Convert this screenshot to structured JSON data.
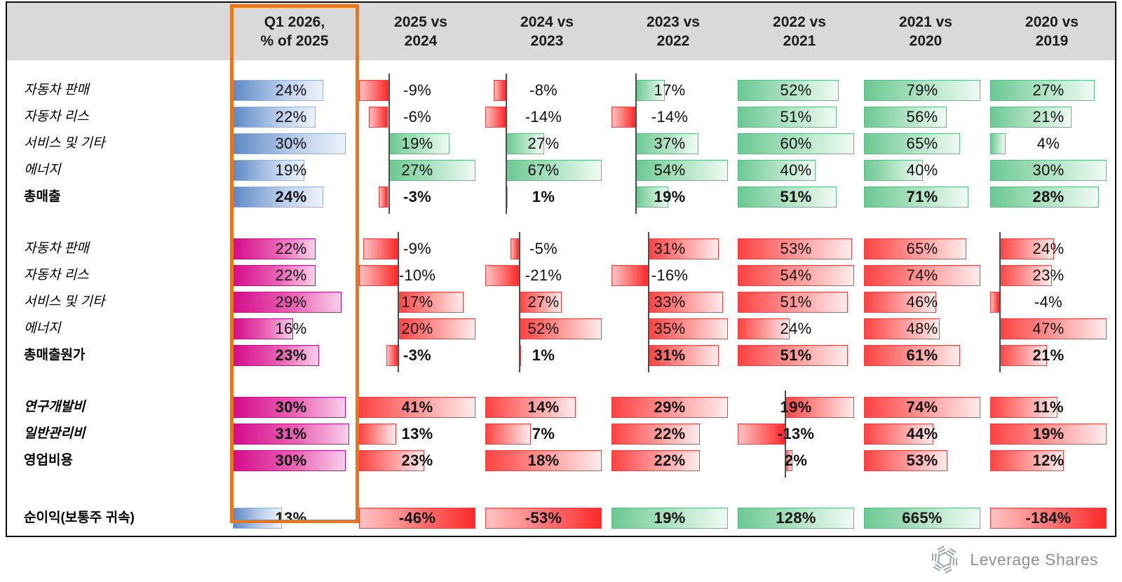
{
  "chart_data": {
    "type": "bar",
    "unit": "%",
    "column_headers": [
      {
        "line1": "Q1 2026,",
        "line2": "% of 2025",
        "highlighted": true
      },
      {
        "line1": "2025 vs",
        "line2": "2024"
      },
      {
        "line1": "2024 vs",
        "line2": "2023"
      },
      {
        "line1": "2023 vs",
        "line2": "2022"
      },
      {
        "line1": "2022 vs",
        "line2": "2021"
      },
      {
        "line1": "2021 vs",
        "line2": "2020"
      },
      {
        "line1": "2020 vs",
        "line2": "2019"
      }
    ],
    "first_column_max": 31,
    "groups": [
      {
        "name": "revenue",
        "first_col_style": "blue",
        "positive_style": "green",
        "full_width_bars": false,
        "rows": [
          {
            "label": "자동차 판매",
            "italic": true,
            "bold": false,
            "values": [
              24,
              -9,
              -8,
              17,
              52,
              79,
              27
            ]
          },
          {
            "label": "자동차 리스",
            "italic": true,
            "bold": false,
            "values": [
              22,
              -6,
              -14,
              -14,
              51,
              56,
              21
            ]
          },
          {
            "label": "서비스 및 기타",
            "italic": true,
            "bold": false,
            "values": [
              30,
              19,
              27,
              37,
              60,
              65,
              4
            ]
          },
          {
            "label": "에너지",
            "italic": true,
            "bold": false,
            "values": [
              19,
              27,
              67,
              54,
              40,
              40,
              30
            ]
          },
          {
            "label": "총매출",
            "italic": false,
            "bold": true,
            "values": [
              24,
              -3,
              1,
              19,
              51,
              71,
              28
            ]
          }
        ]
      },
      {
        "name": "cost-of-revenue",
        "first_col_style": "magenta",
        "positive_style": "red",
        "full_width_bars": false,
        "rows": [
          {
            "label": "자동차 판매",
            "italic": true,
            "bold": false,
            "values": [
              22,
              -9,
              -5,
              31,
              53,
              65,
              24
            ]
          },
          {
            "label": "자동차 리스",
            "italic": true,
            "bold": false,
            "values": [
              22,
              -10,
              -21,
              -16,
              54,
              74,
              23
            ]
          },
          {
            "label": "서비스 및 기타",
            "italic": true,
            "bold": false,
            "values": [
              29,
              17,
              27,
              33,
              51,
              46,
              -4
            ]
          },
          {
            "label": "에너지",
            "italic": true,
            "bold": false,
            "values": [
              16,
              20,
              52,
              35,
              24,
              48,
              47
            ]
          },
          {
            "label": "총매출원가",
            "italic": false,
            "bold": true,
            "values": [
              23,
              -3,
              1,
              31,
              51,
              61,
              21
            ]
          }
        ]
      },
      {
        "name": "operating-expenses",
        "first_col_style": "magenta",
        "positive_style": "red",
        "full_width_bars": false,
        "rows": [
          {
            "label": "연구개발비",
            "italic": true,
            "bold": true,
            "values": [
              30,
              41,
              14,
              29,
              19,
              74,
              11
            ]
          },
          {
            "label": "일반관리비",
            "italic": true,
            "bold": true,
            "values": [
              31,
              13,
              7,
              22,
              -13,
              44,
              19
            ]
          },
          {
            "label": "영업비용",
            "italic": false,
            "bold": true,
            "values": [
              30,
              23,
              18,
              22,
              2,
              53,
              12
            ]
          }
        ]
      },
      {
        "name": "net-income",
        "first_col_style": "blue",
        "positive_style": "green",
        "full_width_bars": true,
        "rows": [
          {
            "label": "순이익(보통주 귀속)",
            "italic": false,
            "bold": true,
            "values": [
              13,
              -46,
              -53,
              19,
              128,
              665,
              -184
            ],
            "regular_value_cols": [
              6
            ]
          }
        ]
      }
    ],
    "legend_position": "none",
    "grid": false
  },
  "colors": {
    "header_band": "#d9d9d9",
    "highlight_orange": "#E8761D",
    "bar_blue": "#5e89c7",
    "bar_magenta": "#d60d8d",
    "bar_green": "#6cc893",
    "bar_red": "#fb4343",
    "axis_line": "#4d4d4d",
    "logo_gray": "#9aa3ab"
  },
  "logo": {
    "text": "Leverage Shares"
  }
}
